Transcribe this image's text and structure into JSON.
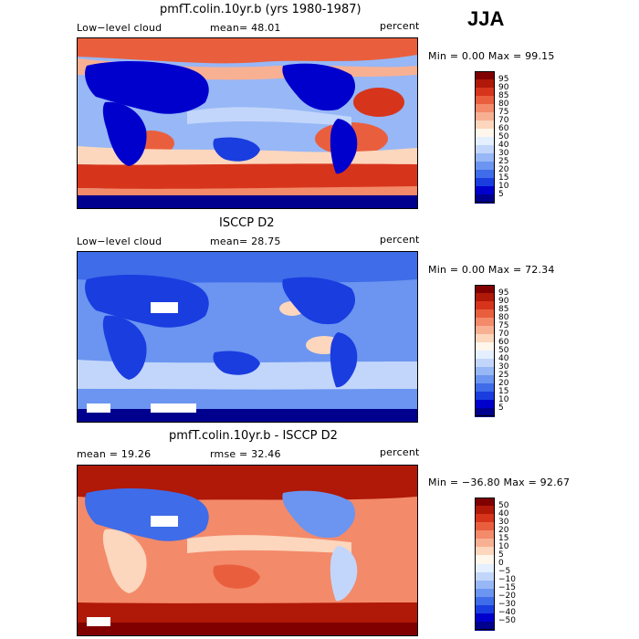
{
  "season": "JJA",
  "colors": {
    "scale": [
      "#00008f",
      "#0000cd",
      "#1a3de0",
      "#3f6ce8",
      "#6b95f0",
      "#97b7f6",
      "#c2d6fb",
      "#e4efff",
      "#fff6ec",
      "#fcd6bd",
      "#f8b093",
      "#f38a6a",
      "#e95f3e",
      "#d6351c",
      "#b01808",
      "#800000"
    ],
    "land": "#102060"
  },
  "panels": [
    {
      "title": "pmfT.colin.10yr.b (yrs 1980-1987)",
      "left_label": "Low−level cloud",
      "center_label": "mean=  48.01",
      "right_label": "percent",
      "min_max": "Min =    0.00 Max =   99.15",
      "colorbar_ticks": [
        "95",
        "90",
        "85",
        "80",
        "75",
        "70",
        "60",
        "50",
        "40",
        "30",
        "25",
        "20",
        "15",
        "10",
        "5"
      ]
    },
    {
      "title": "ISCCP D2",
      "left_label": "Low−level cloud",
      "center_label": "mean=  28.75",
      "right_label": "percent",
      "min_max": "Min =    0.00 Max =   72.34",
      "colorbar_ticks": [
        "95",
        "90",
        "85",
        "80",
        "75",
        "70",
        "60",
        "50",
        "40",
        "30",
        "25",
        "20",
        "15",
        "10",
        "5"
      ]
    },
    {
      "title": "pmfT.colin.10yr.b - ISCCP D2",
      "left_label": "mean =  19.26",
      "center_label": "rmse =  32.46",
      "right_label": "percent",
      "min_max": "Min = −36.80 Max =   92.67",
      "colorbar_ticks": [
        "50",
        "40",
        "30",
        "20",
        "15",
        "10",
        "5",
        "0",
        "−5",
        "−10",
        "−15",
        "−20",
        "−30",
        "−40",
        "−50"
      ]
    }
  ]
}
